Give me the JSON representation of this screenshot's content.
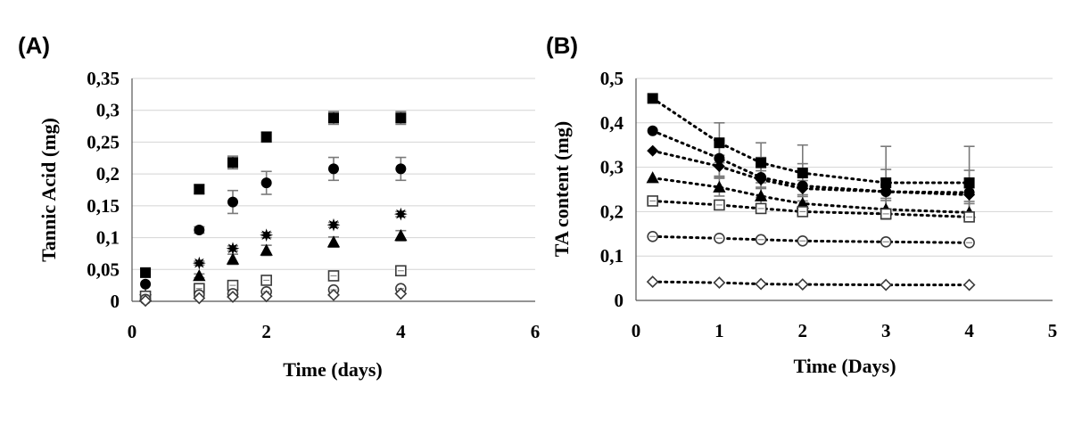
{
  "chart_data": [
    {
      "type": "scatter",
      "panel_label": "(A)",
      "title": "",
      "xlabel": "Time (days)",
      "ylabel": "Tannic Acid (mg)",
      "xlim": [
        0,
        6
      ],
      "ylim": [
        0,
        0.35
      ],
      "x_ticks": [
        0,
        2,
        4,
        6
      ],
      "x_tick_labels": [
        "0",
        "2",
        "4",
        "6"
      ],
      "y_ticks": [
        0,
        0.05,
        0.1,
        0.15,
        0.2,
        0.25,
        0.3,
        0.35
      ],
      "y_tick_labels": [
        "0",
        "0,05",
        "0,1",
        "0,15",
        "0,2",
        "0,25",
        "0,3",
        "0,35"
      ],
      "grid": true,
      "legend": "none",
      "series": [
        {
          "marker": "square-filled",
          "x": [
            0.2,
            1,
            1.5,
            2,
            3,
            4
          ],
          "y": [
            0.045,
            0.176,
            0.218,
            0.258,
            0.288,
            0.288
          ],
          "err": [
            0,
            0.007,
            0.01,
            0.008,
            0.01,
            0.01
          ]
        },
        {
          "marker": "circle-filled",
          "x": [
            0.2,
            1,
            1.5,
            2,
            3,
            4
          ],
          "y": [
            0.027,
            0.112,
            0.156,
            0.186,
            0.208,
            0.208
          ],
          "err": [
            0,
            0.005,
            0.018,
            0.018,
            0.018,
            0.018
          ]
        },
        {
          "marker": "star-filled",
          "x": [
            0.2,
            1,
            1.5,
            2,
            3,
            4
          ],
          "y": [
            0.01,
            0.06,
            0.083,
            0.104,
            0.12,
            0.137
          ],
          "err": [
            0,
            0.003,
            0.004,
            0.004,
            0.004,
            0.004
          ]
        },
        {
          "marker": "triangle-filled",
          "x": [
            0.2,
            1,
            1.5,
            2,
            3,
            4
          ],
          "y": [
            0.008,
            0.04,
            0.066,
            0.08,
            0.093,
            0.103
          ],
          "err": [
            0,
            0.003,
            0.008,
            0.008,
            0.008,
            0.008
          ]
        },
        {
          "marker": "square-open",
          "x": [
            0.2,
            1,
            1.5,
            2,
            3,
            4
          ],
          "y": [
            0.008,
            0.02,
            0.025,
            0.033,
            0.04,
            0.048
          ],
          "err": [
            0,
            0.003,
            0.003,
            0.003,
            0.004,
            0.005
          ]
        },
        {
          "marker": "circle-open",
          "x": [
            0.2,
            1,
            1.5,
            2,
            3,
            4
          ],
          "y": [
            0.003,
            0.01,
            0.012,
            0.015,
            0.018,
            0.02
          ],
          "err": [
            0,
            0,
            0,
            0,
            0,
            0
          ]
        },
        {
          "marker": "diamond-open",
          "x": [
            0.2,
            1,
            1.5,
            2,
            3,
            4
          ],
          "y": [
            0.001,
            0.005,
            0.007,
            0.008,
            0.01,
            0.012
          ],
          "err": [
            0,
            0,
            0,
            0,
            0,
            0
          ]
        }
      ]
    },
    {
      "type": "line",
      "panel_label": "(B)",
      "title": "",
      "xlabel": "Time (Days)",
      "ylabel": "TA content (mg)",
      "xlim": [
        0,
        5
      ],
      "ylim": [
        0,
        0.5
      ],
      "x_ticks": [
        0,
        1,
        2,
        3,
        4,
        5
      ],
      "x_tick_labels": [
        "0",
        "1",
        "2",
        "3",
        "4",
        "5"
      ],
      "y_ticks": [
        0,
        0.1,
        0.2,
        0.3,
        0.4,
        0.5
      ],
      "y_tick_labels": [
        "0",
        "0,1",
        "0,2",
        "0,3",
        "0,4",
        "0,5"
      ],
      "grid": true,
      "legend": "none",
      "line_style": "dotted",
      "series": [
        {
          "marker": "square-filled",
          "x": [
            0.2,
            1,
            1.5,
            2,
            3,
            4
          ],
          "y": [
            0.455,
            0.355,
            0.31,
            0.287,
            0.265,
            0.265
          ],
          "err": [
            0,
            0.045,
            0.045,
            0.063,
            0.082,
            0.082
          ]
        },
        {
          "marker": "circle-filled",
          "x": [
            0.2,
            1,
            1.5,
            2,
            3,
            4
          ],
          "y": [
            0.382,
            0.32,
            0.277,
            0.258,
            0.245,
            0.243
          ],
          "err": [
            0,
            0.04,
            0.045,
            0.05,
            0.05,
            0.05
          ]
        },
        {
          "marker": "diamond-filled",
          "x": [
            0.2,
            1,
            1.5,
            2,
            3,
            4
          ],
          "y": [
            0.337,
            0.302,
            0.272,
            0.252,
            0.245,
            0.238
          ],
          "err": [
            0,
            0.025,
            0.02,
            0.018,
            0.015,
            0.015
          ]
        },
        {
          "marker": "triangle-filled",
          "x": [
            0.2,
            1,
            1.5,
            2,
            3,
            4
          ],
          "y": [
            0.276,
            0.255,
            0.235,
            0.218,
            0.205,
            0.198
          ],
          "err": [
            0,
            0.02,
            0.02,
            0.02,
            0.02,
            0.02
          ]
        },
        {
          "marker": "square-open",
          "x": [
            0.2,
            1,
            1.5,
            2,
            3,
            4
          ],
          "y": [
            0.224,
            0.215,
            0.207,
            0.2,
            0.195,
            0.188
          ],
          "err": [
            0,
            0.01,
            0.01,
            0.01,
            0.01,
            0.01
          ]
        },
        {
          "marker": "circle-open",
          "x": [
            0.2,
            1,
            1.5,
            2,
            3,
            4
          ],
          "y": [
            0.144,
            0.14,
            0.137,
            0.134,
            0.132,
            0.13
          ],
          "err": [
            0,
            0,
            0,
            0,
            0,
            0
          ]
        },
        {
          "marker": "diamond-open",
          "x": [
            0.2,
            1,
            1.5,
            2,
            3,
            4
          ],
          "y": [
            0.042,
            0.04,
            0.037,
            0.036,
            0.035,
            0.035
          ],
          "err": [
            0,
            0,
            0,
            0,
            0,
            0
          ]
        }
      ]
    }
  ]
}
